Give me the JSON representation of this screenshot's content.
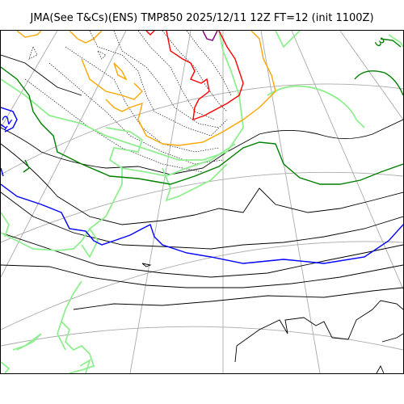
{
  "title": "JMA(See T&Cs)(ENS) TMP850 2025/12/11 12Z FT=12 (init 1100Z)",
  "contour_labels": [
    "12",
    "3"
  ],
  "colors": {
    "coast": "#000000",
    "grid": "#aaaaaa",
    "dotted": "#333333",
    "light_green": "#90ee90",
    "orange": "#ffa500",
    "red": "#ff0000",
    "green": "#008000",
    "blue": "#0000ff",
    "purple": "#800080"
  }
}
